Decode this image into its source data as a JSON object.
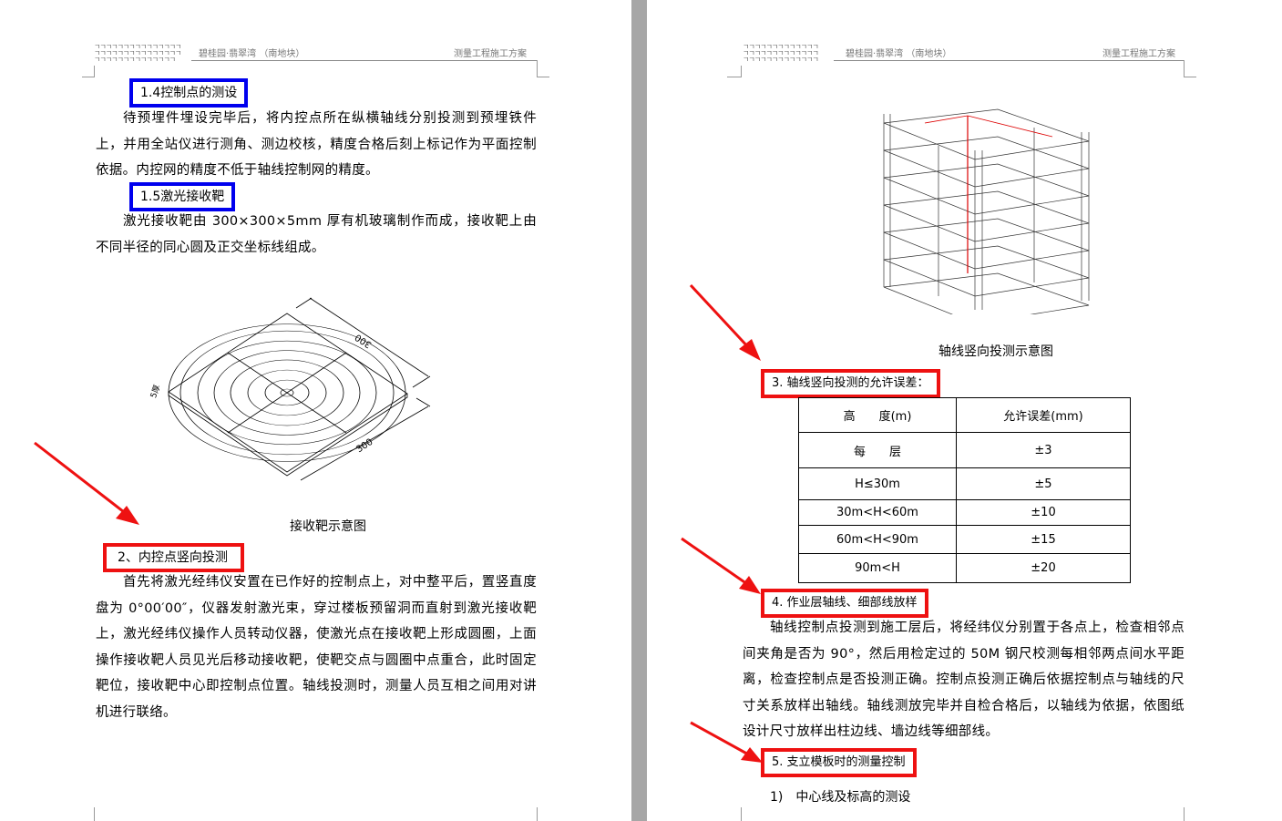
{
  "header": {
    "project": "碧桂园·翡翠湾 （南地块）",
    "doc_title": "测量工程施工方案"
  },
  "left": {
    "h14": "1.4控制点的测设",
    "p14": "待预埋件埋设完毕后，将内控点所在纵横轴线分别投测到预埋铁件上，并用全站仪进行测角、测边校核，精度合格后刻上标记作为平面控制依据。内控网的精度不低于轴线控制网的精度。",
    "h15": "1.5激光接收靶",
    "p15": "激光接收靶由 300×300×5mm 厚有机玻璃制作而成，接收靶上由不同半径的同心圆及正交坐标线组成。",
    "fig": {
      "dim1": "300",
      "dim2": "300",
      "thick": "5厚",
      "caption": "接收靶示意图"
    },
    "h2": "2、内控点竖向投测",
    "p2": "首先将激光经纬仪安置在已作好的控制点上，对中整平后，置竖直度盘为 0°00′00″，仪器发射激光束，穿过楼板预留洞而直射到激光接收靶上，激光经纬仪操作人员转动仪器，使激光点在接收靶上形成圆圈，上面操作接收靶人员见光后移动接收靶，使靶交点与圆圈中点重合，此时固定靶位，接收靶中心即控制点位置。轴线投测时，测量人员互相之间用对讲机进行联络。"
  },
  "right": {
    "fig_caption": "轴线竖向投测示意图",
    "h3": "3. 轴线竖向投测的允许误差：",
    "table": {
      "headers": [
        "高　　度(m)",
        "允许误差(mm)"
      ],
      "rows": [
        [
          "每　　层",
          "±3"
        ],
        [
          "H≤30m",
          "±5"
        ],
        [
          "30m<H<60m",
          "±10"
        ],
        [
          "60m<H<90m",
          "±15"
        ],
        [
          "90m<H",
          "±20"
        ]
      ]
    },
    "h4": "4. 作业层轴线、细部线放样",
    "p4": "轴线控制点投测到施工层后，将经纬仪分别置于各点上，检查相邻点间夹角是否为 90°，然后用检定过的 50M 钢尺校测每相邻两点间水平距离，检查控制点是否投测正确。控制点投测正确后依据控制点与轴线的尺寸关系放样出轴线。轴线测放完毕并自检合格后，以轴线为依据，依图纸设计尺寸放样出柱边线、墙边线等细部线。",
    "h5": "5. 支立模板时的测量控制",
    "sub1": "1)　中心线及标高的测设"
  },
  "colors": {
    "blue_box": "#0000ee",
    "red_box": "#ee1111",
    "arrow": "#ee1111"
  }
}
